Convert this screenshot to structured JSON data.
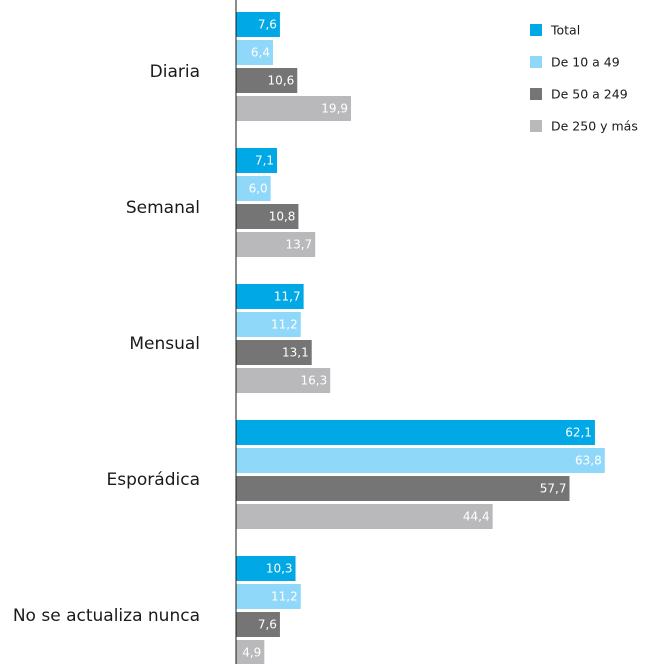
{
  "chart_data": {
    "type": "bar",
    "orientation": "horizontal",
    "categories": [
      "Diaria",
      "Semanal",
      "Mensual",
      "Esporádica",
      "No se actualiza nunca"
    ],
    "series": [
      {
        "name": "Total",
        "color": "#00a8e6",
        "values": [
          7.6,
          7.1,
          11.7,
          62.1,
          10.3
        ],
        "labels": [
          "7,6",
          "7,1",
          "11,7",
          "62,1",
          "10,3"
        ]
      },
      {
        "name": "De 10 a 49",
        "color": "#8fd8fa",
        "values": [
          6.4,
          6.0,
          11.2,
          63.8,
          11.2
        ],
        "labels": [
          "6,4",
          "6,0",
          "11,2",
          "63,8",
          "11,2"
        ]
      },
      {
        "name": "De 50 a 249",
        "color": "#757575",
        "values": [
          10.6,
          10.8,
          13.1,
          57.7,
          7.6
        ],
        "labels": [
          "10,6",
          "10,8",
          "13,1",
          "57,7",
          "7,6"
        ]
      },
      {
        "name": "De 250 y más",
        "color": "#b9b9bc",
        "values": [
          19.9,
          13.7,
          16.3,
          44.4,
          4.9
        ],
        "labels": [
          "19,9",
          "13,7",
          "16,3",
          "44,4",
          "4,9"
        ]
      }
    ],
    "title": "",
    "xlabel": "",
    "ylabel": "",
    "xlim": [
      0,
      70
    ],
    "grid": false,
    "legend": "top-right"
  }
}
